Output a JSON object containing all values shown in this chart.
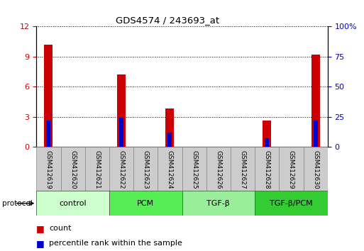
{
  "title": "GDS4574 / 243693_at",
  "samples": [
    "GSM412619",
    "GSM412620",
    "GSM412621",
    "GSM412622",
    "GSM412623",
    "GSM412624",
    "GSM412625",
    "GSM412626",
    "GSM412627",
    "GSM412628",
    "GSM412629",
    "GSM412630"
  ],
  "count_values": [
    10.2,
    0,
    0,
    7.2,
    0,
    3.8,
    0,
    0,
    0,
    2.6,
    0,
    9.2
  ],
  "percentile_values": [
    22,
    0,
    0,
    24,
    0,
    12,
    0,
    0,
    0,
    7,
    0,
    22
  ],
  "ylim_left": [
    0,
    12
  ],
  "ylim_right": [
    0,
    100
  ],
  "yticks_left": [
    0,
    3,
    6,
    9,
    12
  ],
  "yticks_right": [
    0,
    25,
    50,
    75,
    100
  ],
  "groups": [
    {
      "label": "control",
      "start": 0,
      "end": 3,
      "color": "#ccffcc"
    },
    {
      "label": "PCM",
      "start": 3,
      "end": 6,
      "color": "#55ee55"
    },
    {
      "label": "TGF-β",
      "start": 6,
      "end": 9,
      "color": "#99ee99"
    },
    {
      "label": "TGF-β/PCM",
      "start": 9,
      "end": 12,
      "color": "#33cc33"
    }
  ],
  "count_color": "#cc0000",
  "percentile_color": "#0000cc",
  "tick_color_left": "#cc0000",
  "tick_color_right": "#0000cc",
  "bg_color": "#ffffff",
  "sample_bg": "#cccccc",
  "bar_width": 0.35,
  "pct_bar_width": 0.18
}
